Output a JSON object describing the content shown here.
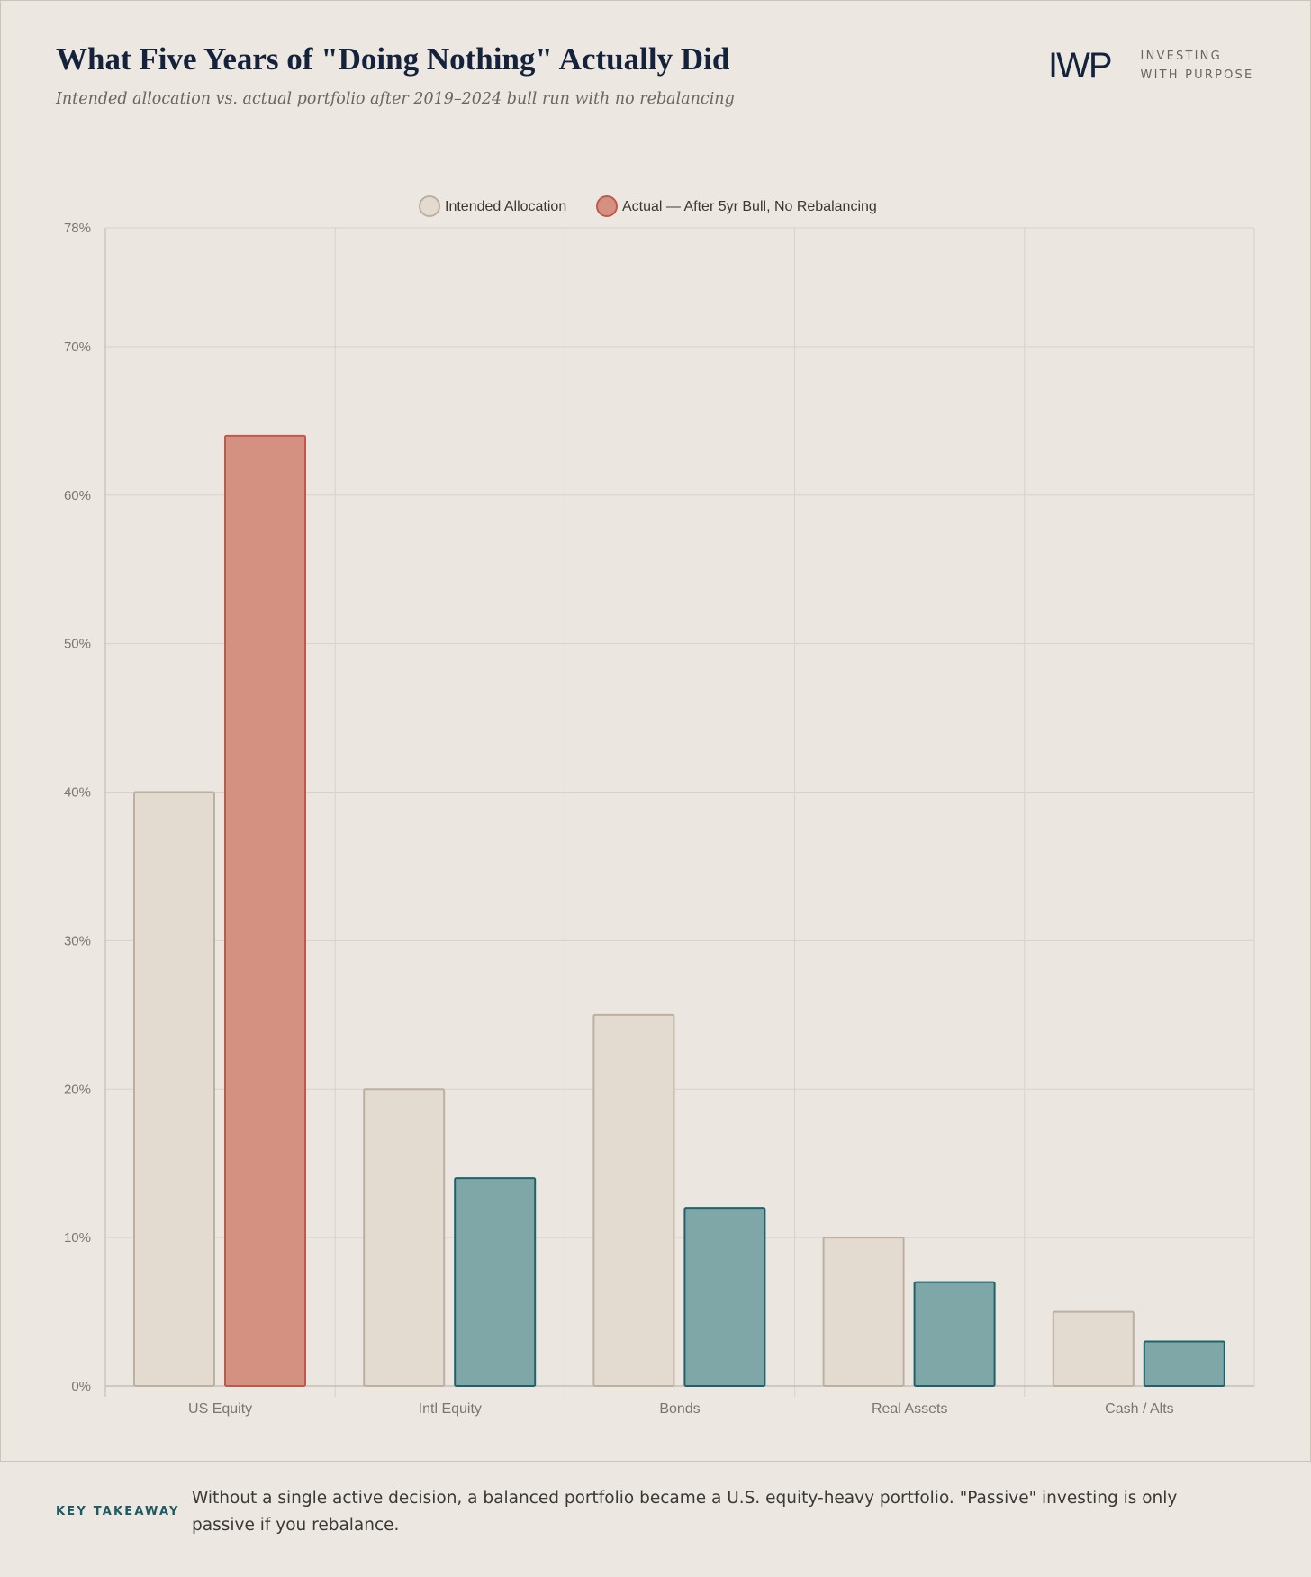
{
  "header": {
    "title": "What Five Years of \"Doing Nothing\" Actually Did",
    "subtitle": "Intended allocation vs. actual portfolio after 2019–2024 bull run with no rebalancing"
  },
  "logo": {
    "mark": "IWP",
    "line1": "INVESTING",
    "line2": "WITH PURPOSE"
  },
  "chart_data": {
    "type": "bar",
    "categories": [
      "US Equity",
      "Intl Equity",
      "Bonds",
      "Real Assets",
      "Cash / Alts"
    ],
    "series": [
      {
        "name": "Intended Allocation",
        "values": [
          40,
          20,
          25,
          10,
          5
        ],
        "fill": "#e3dbd0",
        "stroke": "#bcb0a1"
      },
      {
        "name": "Actual — After 5yr Bull, No Rebalancing",
        "values": [
          64,
          14,
          12,
          7,
          3
        ],
        "fill": "#d49181",
        "stroke": "#c0594b",
        "bar_colors": [
          {
            "fill": "#d49181",
            "stroke": "#c0594b"
          },
          {
            "fill": "#7fa7a8",
            "stroke": "#1f626c"
          },
          {
            "fill": "#7fa7a8",
            "stroke": "#1f626c"
          },
          {
            "fill": "#7fa7a8",
            "stroke": "#1f626c"
          },
          {
            "fill": "#7fa7a8",
            "stroke": "#1f626c"
          }
        ]
      }
    ],
    "ylim": [
      0,
      78
    ],
    "yticks": [
      "0%",
      "10%",
      "20%",
      "30%",
      "40%",
      "50%",
      "60%",
      "70%",
      "78%"
    ],
    "ytick_values": [
      0,
      10,
      20,
      30,
      40,
      50,
      60,
      70,
      78
    ],
    "xlabel": "",
    "ylabel": "",
    "grid": true,
    "legend_position": "top-center"
  },
  "footer": {
    "label": "KEY TAKEAWAY",
    "text": "Without a single active decision, a balanced portfolio became a U.S. equity-heavy portfolio. \"Passive\" investing is only passive if you rebalance."
  }
}
